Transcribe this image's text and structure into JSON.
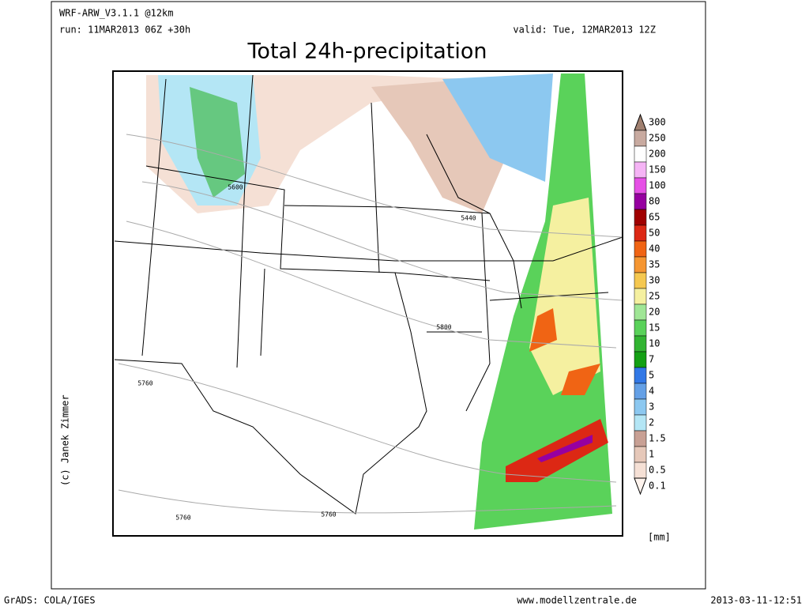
{
  "header": {
    "model": "WRF-ARW_V3.1.1 @12km",
    "run": "run: 11MAR2013 06Z +30h",
    "valid": "valid: Tue, 12MAR2013 12Z",
    "title": "Total 24h-precipitation"
  },
  "legend": {
    "unit": "[mm]",
    "levels": [
      {
        "label": "300",
        "color": "#a08070"
      },
      {
        "label": "250",
        "color": "#c8aaa0"
      },
      {
        "label": "200",
        "color": "#ffffff"
      },
      {
        "label": "150",
        "color": "#f5b4f5"
      },
      {
        "label": "100",
        "color": "#e650e6"
      },
      {
        "label": "80",
        "color": "#9600a0"
      },
      {
        "label": "65",
        "color": "#a00000"
      },
      {
        "label": "50",
        "color": "#dc2814"
      },
      {
        "label": "40",
        "color": "#f06414"
      },
      {
        "label": "35",
        "color": "#f59632"
      },
      {
        "label": "30",
        "color": "#f5c850"
      },
      {
        "label": "25",
        "color": "#f5f0a0"
      },
      {
        "label": "20",
        "color": "#a0e696"
      },
      {
        "label": "15",
        "color": "#5ad25a"
      },
      {
        "label": "10",
        "color": "#32b432"
      },
      {
        "label": "7",
        "color": "#14a014"
      },
      {
        "label": "5",
        "color": "#3278e6"
      },
      {
        "label": "4",
        "color": "#64a0e6"
      },
      {
        "label": "3",
        "color": "#8cc8f0"
      },
      {
        "label": "2",
        "color": "#b4e6f5"
      },
      {
        "label": "1.5",
        "color": "#c8a094"
      },
      {
        "label": "1",
        "color": "#e6c8b9"
      },
      {
        "label": "0.5",
        "color": "#f5e0d5"
      },
      {
        "label": "0.1",
        "color": "#fff4ee"
      }
    ]
  },
  "contour_labels": [
    "5600",
    "5440",
    "5800",
    "5760",
    "5760",
    "5760"
  ],
  "credit": "(c) Janek Zimmer",
  "footer": {
    "left": "GrADS: COLA/IGES",
    "center": "www.modellzentrale.de",
    "right": "2013-03-11-12:51"
  }
}
